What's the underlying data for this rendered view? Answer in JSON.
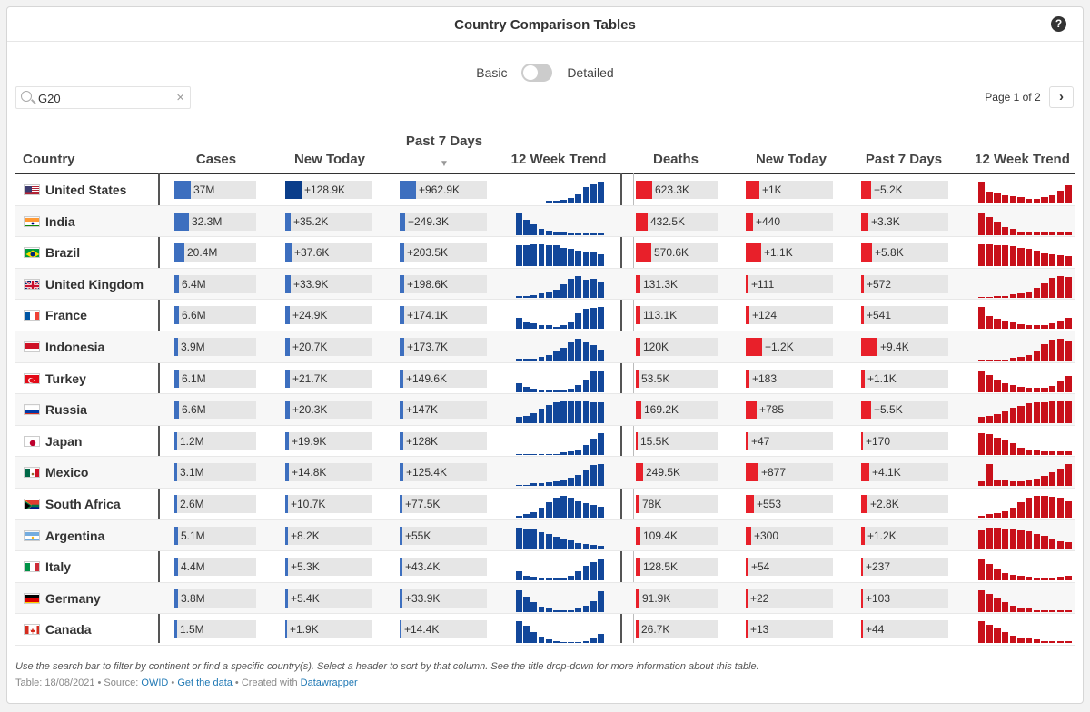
{
  "title": "Country Comparison Tables",
  "help_icon": "help-circle-icon",
  "toggle": {
    "left": "Basic",
    "right": "Detailed",
    "state": "Basic"
  },
  "search": {
    "value": "G20",
    "clear": "×",
    "icon": "search-icon"
  },
  "pager": {
    "text": "Page 1 of 2",
    "next": "›"
  },
  "headers": {
    "country": "Country",
    "cases": "Cases",
    "new_cases": "New Today",
    "past7_cases": "Past 7 Days",
    "trend_cases": "12 Week Trend",
    "deaths": "Deaths",
    "new_deaths": "New Today",
    "past7_deaths": "Past 7 Days",
    "trend_deaths": "12 Week Trend",
    "sort_indicator": "▼"
  },
  "colors": {
    "cases": "#3d6fbf",
    "cases_dark": "#0a3d8a",
    "cases_spark": "#12479a",
    "deaths": "#e8202a",
    "deaths_spark": "#c8101a"
  },
  "rows": [
    {
      "country": "United States",
      "flag": "us",
      "cases": "37M",
      "cases_n": 37,
      "new_cases": "+128.9K",
      "new_cases_n": 128.9,
      "p7_cases": "+962.9K",
      "p7_cases_n": 962.9,
      "deaths": "623.3K",
      "deaths_n": 623.3,
      "new_deaths": "+1K",
      "new_deaths_n": 1000,
      "p7_deaths": "+5.2K",
      "p7_deaths_n": 5.2,
      "trend_cases": [
        1,
        1,
        1,
        1,
        2,
        2,
        3,
        5,
        8,
        14,
        17,
        19
      ],
      "trend_deaths": [
        22,
        12,
        10,
        8,
        7,
        6,
        5,
        5,
        6,
        8,
        13,
        18
      ]
    },
    {
      "country": "India",
      "flag": "in",
      "cases": "32.3M",
      "cases_n": 32.3,
      "new_cases": "+35.2K",
      "new_cases_n": 35.2,
      "p7_cases": "+249.3K",
      "p7_cases_n": 249.3,
      "deaths": "432.5K",
      "deaths_n": 432.5,
      "new_deaths": "+440",
      "new_deaths_n": 440,
      "p7_deaths": "+3.3K",
      "p7_deaths_n": 3.3,
      "trend_cases": [
        20,
        14,
        10,
        6,
        4,
        3,
        3,
        2,
        2,
        2,
        2,
        2
      ],
      "trend_deaths": [
        22,
        18,
        14,
        8,
        6,
        4,
        3,
        3,
        3,
        3,
        3,
        3
      ]
    },
    {
      "country": "Brazil",
      "flag": "br",
      "cases": "20.4M",
      "cases_n": 20.4,
      "new_cases": "+37.6K",
      "new_cases_n": 37.6,
      "p7_cases": "+203.5K",
      "p7_cases_n": 203.5,
      "deaths": "570.6K",
      "deaths_n": 570.6,
      "new_deaths": "+1.1K",
      "new_deaths_n": 1100,
      "p7_deaths": "+5.8K",
      "p7_deaths_n": 5.8,
      "trend_cases": [
        17,
        17,
        18,
        18,
        17,
        17,
        15,
        14,
        13,
        12,
        11,
        10
      ],
      "trend_deaths": [
        20,
        20,
        19,
        19,
        18,
        17,
        16,
        14,
        12,
        11,
        10,
        9
      ]
    },
    {
      "country": "United Kingdom",
      "flag": "gb",
      "cases": "6.4M",
      "cases_n": 6.4,
      "new_cases": "+33.9K",
      "new_cases_n": 33.9,
      "p7_cases": "+198.6K",
      "p7_cases_n": 198.6,
      "deaths": "131.3K",
      "deaths_n": 131.3,
      "new_deaths": "+111",
      "new_deaths_n": 111,
      "p7_deaths": "+572",
      "p7_deaths_n": 0.572,
      "trend_cases": [
        1,
        1,
        2,
        3,
        4,
        6,
        10,
        14,
        16,
        13,
        14,
        12
      ],
      "trend_deaths": [
        1,
        1,
        2,
        2,
        3,
        4,
        6,
        9,
        13,
        18,
        20,
        19
      ]
    },
    {
      "country": "France",
      "flag": "fr",
      "cases": "6.6M",
      "cases_n": 6.6,
      "new_cases": "+24.9K",
      "new_cases_n": 24.9,
      "p7_cases": "+174.1K",
      "p7_cases_n": 174.1,
      "deaths": "113.1K",
      "deaths_n": 113.1,
      "new_deaths": "+124",
      "new_deaths_n": 124,
      "p7_deaths": "+541",
      "p7_deaths_n": 0.541,
      "trend_cases": [
        10,
        6,
        5,
        3,
        3,
        2,
        3,
        6,
        14,
        18,
        19,
        20
      ],
      "trend_deaths": [
        20,
        12,
        9,
        7,
        6,
        4,
        3,
        3,
        3,
        5,
        7,
        10
      ]
    },
    {
      "country": "Indonesia",
      "flag": "id",
      "cases": "3.9M",
      "cases_n": 3.9,
      "new_cases": "+20.7K",
      "new_cases_n": 20.7,
      "p7_cases": "+173.7K",
      "p7_cases_n": 173.7,
      "deaths": "120K",
      "deaths_n": 120,
      "new_deaths": "+1.2K",
      "new_deaths_n": 1200,
      "p7_deaths": "+9.4K",
      "p7_deaths_n": 9.4,
      "trend_cases": [
        2,
        2,
        2,
        3,
        5,
        8,
        12,
        17,
        20,
        17,
        14,
        10
      ],
      "trend_deaths": [
        1,
        1,
        1,
        1,
        2,
        3,
        5,
        9,
        14,
        18,
        19,
        17
      ]
    },
    {
      "country": "Turkey",
      "flag": "tr",
      "cases": "6.1M",
      "cases_n": 6.1,
      "new_cases": "+21.7K",
      "new_cases_n": 21.7,
      "p7_cases": "+149.6K",
      "p7_cases_n": 149.6,
      "deaths": "53.5K",
      "deaths_n": 53.5,
      "new_deaths": "+183",
      "new_deaths_n": 183,
      "p7_deaths": "+1.1K",
      "p7_deaths_n": 1.1,
      "trend_cases": [
        8,
        5,
        3,
        2,
        2,
        2,
        2,
        3,
        6,
        11,
        18,
        19
      ],
      "trend_deaths": [
        21,
        17,
        12,
        9,
        7,
        5,
        4,
        4,
        4,
        6,
        11,
        16
      ]
    },
    {
      "country": "Russia",
      "flag": "ru",
      "cases": "6.6M",
      "cases_n": 6.6,
      "new_cases": "+20.3K",
      "new_cases_n": 20.3,
      "p7_cases": "+147K",
      "p7_cases_n": 147,
      "deaths": "169.2K",
      "deaths_n": 169.2,
      "new_deaths": "+785",
      "new_deaths_n": 785,
      "p7_deaths": "+5.5K",
      "p7_deaths_n": 5.5,
      "trend_cases": [
        6,
        7,
        9,
        13,
        17,
        19,
        20,
        20,
        20,
        20,
        19,
        19
      ],
      "trend_deaths": [
        6,
        7,
        8,
        11,
        14,
        16,
        18,
        19,
        19,
        20,
        20,
        20
      ]
    },
    {
      "country": "Japan",
      "flag": "jp",
      "cases": "1.2M",
      "cases_n": 1.2,
      "new_cases": "+19.9K",
      "new_cases_n": 19.9,
      "p7_cases": "+128K",
      "p7_cases_n": 128,
      "deaths": "15.5K",
      "deaths_n": 15.5,
      "new_deaths": "+47",
      "new_deaths_n": 47,
      "p7_deaths": "+170",
      "p7_deaths_n": 0.17,
      "trend_cases": [
        1,
        1,
        1,
        1,
        1,
        1,
        2,
        3,
        5,
        9,
        14,
        19
      ],
      "trend_deaths": [
        20,
        19,
        16,
        13,
        11,
        7,
        5,
        4,
        3,
        3,
        3,
        3
      ]
    },
    {
      "country": "Mexico",
      "flag": "mx",
      "cases": "3.1M",
      "cases_n": 3.1,
      "new_cases": "+14.8K",
      "new_cases_n": 14.8,
      "p7_cases": "+125.4K",
      "p7_cases_n": 125.4,
      "deaths": "249.5K",
      "deaths_n": 249.5,
      "new_deaths": "+877",
      "new_deaths_n": 877,
      "p7_deaths": "+4.1K",
      "p7_deaths_n": 4.1,
      "trend_cases": [
        1,
        1,
        2,
        2,
        3,
        4,
        5,
        7,
        9,
        13,
        17,
        18
      ],
      "trend_deaths": [
        4,
        18,
        5,
        5,
        4,
        4,
        5,
        6,
        8,
        11,
        14,
        18
      ]
    },
    {
      "country": "South Africa",
      "flag": "za",
      "cases": "2.6M",
      "cases_n": 2.6,
      "new_cases": "+10.7K",
      "new_cases_n": 10.7,
      "p7_cases": "+77.5K",
      "p7_cases_n": 77.5,
      "deaths": "78K",
      "deaths_n": 78,
      "new_deaths": "+553",
      "new_deaths_n": 553,
      "p7_deaths": "+2.8K",
      "p7_deaths_n": 2.8,
      "trend_cases": [
        2,
        3,
        5,
        9,
        14,
        18,
        20,
        18,
        15,
        13,
        12,
        10
      ],
      "trend_deaths": [
        2,
        3,
        4,
        6,
        9,
        14,
        18,
        20,
        20,
        19,
        18,
        15
      ]
    },
    {
      "country": "Argentina",
      "flag": "ar",
      "cases": "5.1M",
      "cases_n": 5.1,
      "new_cases": "+8.2K",
      "new_cases_n": 8.2,
      "p7_cases": "+55K",
      "p7_cases_n": 55,
      "deaths": "109.4K",
      "deaths_n": 109.4,
      "new_deaths": "+300",
      "new_deaths_n": 300,
      "p7_deaths": "+1.2K",
      "p7_deaths_n": 1.2,
      "trend_cases": [
        20,
        19,
        18,
        16,
        14,
        12,
        10,
        8,
        6,
        5,
        4,
        3
      ],
      "trend_deaths": [
        16,
        18,
        18,
        17,
        17,
        16,
        15,
        13,
        11,
        9,
        7,
        6
      ]
    },
    {
      "country": "Italy",
      "flag": "it",
      "cases": "4.4M",
      "cases_n": 4.4,
      "new_cases": "+5.3K",
      "new_cases_n": 5.3,
      "p7_cases": "+43.4K",
      "p7_cases_n": 43.4,
      "deaths": "128.5K",
      "deaths_n": 128.5,
      "new_deaths": "+54",
      "new_deaths_n": 54,
      "p7_deaths": "+237",
      "p7_deaths_n": 0.237,
      "trend_cases": [
        8,
        4,
        3,
        2,
        2,
        2,
        2,
        4,
        8,
        13,
        17,
        20
      ],
      "trend_deaths": [
        20,
        15,
        10,
        7,
        5,
        4,
        3,
        2,
        2,
        2,
        3,
        4
      ]
    },
    {
      "country": "Germany",
      "flag": "de",
      "cases": "3.8M",
      "cases_n": 3.8,
      "new_cases": "+5.4K",
      "new_cases_n": 5.4,
      "p7_cases": "+33.9K",
      "p7_cases_n": 33.9,
      "deaths": "91.9K",
      "deaths_n": 91.9,
      "new_deaths": "+22",
      "new_deaths_n": 22,
      "p7_deaths": "+103",
      "p7_deaths_n": 0.103,
      "trend_cases": [
        20,
        14,
        9,
        5,
        3,
        2,
        2,
        2,
        3,
        6,
        10,
        19
      ],
      "trend_deaths": [
        20,
        17,
        13,
        9,
        6,
        4,
        3,
        2,
        2,
        2,
        2,
        2
      ]
    },
    {
      "country": "Canada",
      "flag": "ca",
      "cases": "1.5M",
      "cases_n": 1.5,
      "new_cases": "+1.9K",
      "new_cases_n": 1.9,
      "p7_cases": "+14.4K",
      "p7_cases_n": 14.4,
      "deaths": "26.7K",
      "deaths_n": 26.7,
      "new_deaths": "+13",
      "new_deaths_n": 13,
      "p7_deaths": "+44",
      "p7_deaths_n": 0.044,
      "trend_cases": [
        20,
        16,
        10,
        6,
        3,
        2,
        1,
        1,
        1,
        2,
        4,
        8
      ],
      "trend_deaths": [
        20,
        17,
        14,
        10,
        7,
        5,
        4,
        3,
        2,
        2,
        2,
        2
      ]
    }
  ],
  "footer": {
    "note": "Use the search bar to filter by continent or find a specific country(s). Select a header to sort by that column. See the title drop-down for more information about this table.",
    "meta_prefix": "Table: 18/08/2021 • Source: ",
    "source_link": "OWID",
    "sep1": " • ",
    "data_link": "Get the data",
    "sep2": " • Created with ",
    "dw_link": "Datawrapper"
  }
}
